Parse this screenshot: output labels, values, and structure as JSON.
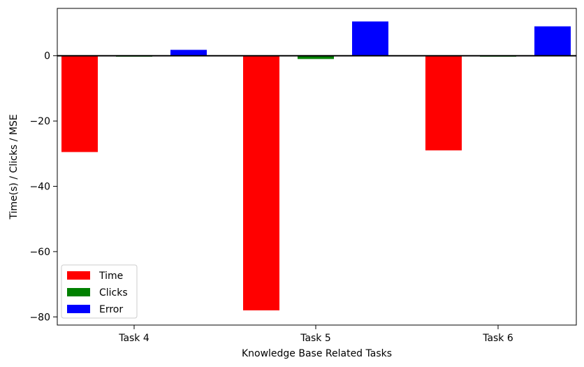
{
  "chart_data": {
    "type": "bar",
    "categories": [
      "Task 4",
      "Task 5",
      "Task 6"
    ],
    "series": [
      {
        "name": "Time",
        "values": [
          -29.5,
          -78.0,
          -29.0
        ],
        "color": "#ff0000"
      },
      {
        "name": "Clicks",
        "values": [
          -0.3,
          -1.0,
          -0.3
        ],
        "color": "#008000"
      },
      {
        "name": "Error",
        "values": [
          1.8,
          10.5,
          9.0
        ],
        "color": "#0000ff"
      }
    ],
    "xlabel": "Knowledge Base Related Tasks",
    "ylabel": "Time(s) / Clicks / MSE",
    "ylim": [
      -82.5,
      14.5
    ],
    "yticks": [
      0,
      -20,
      -40,
      -60,
      -80
    ],
    "ytick_labels": [
      "0",
      "−20",
      "−40",
      "−60",
      "−80"
    ],
    "zero_line": true,
    "grid": false,
    "legend_position": "lower-left"
  }
}
